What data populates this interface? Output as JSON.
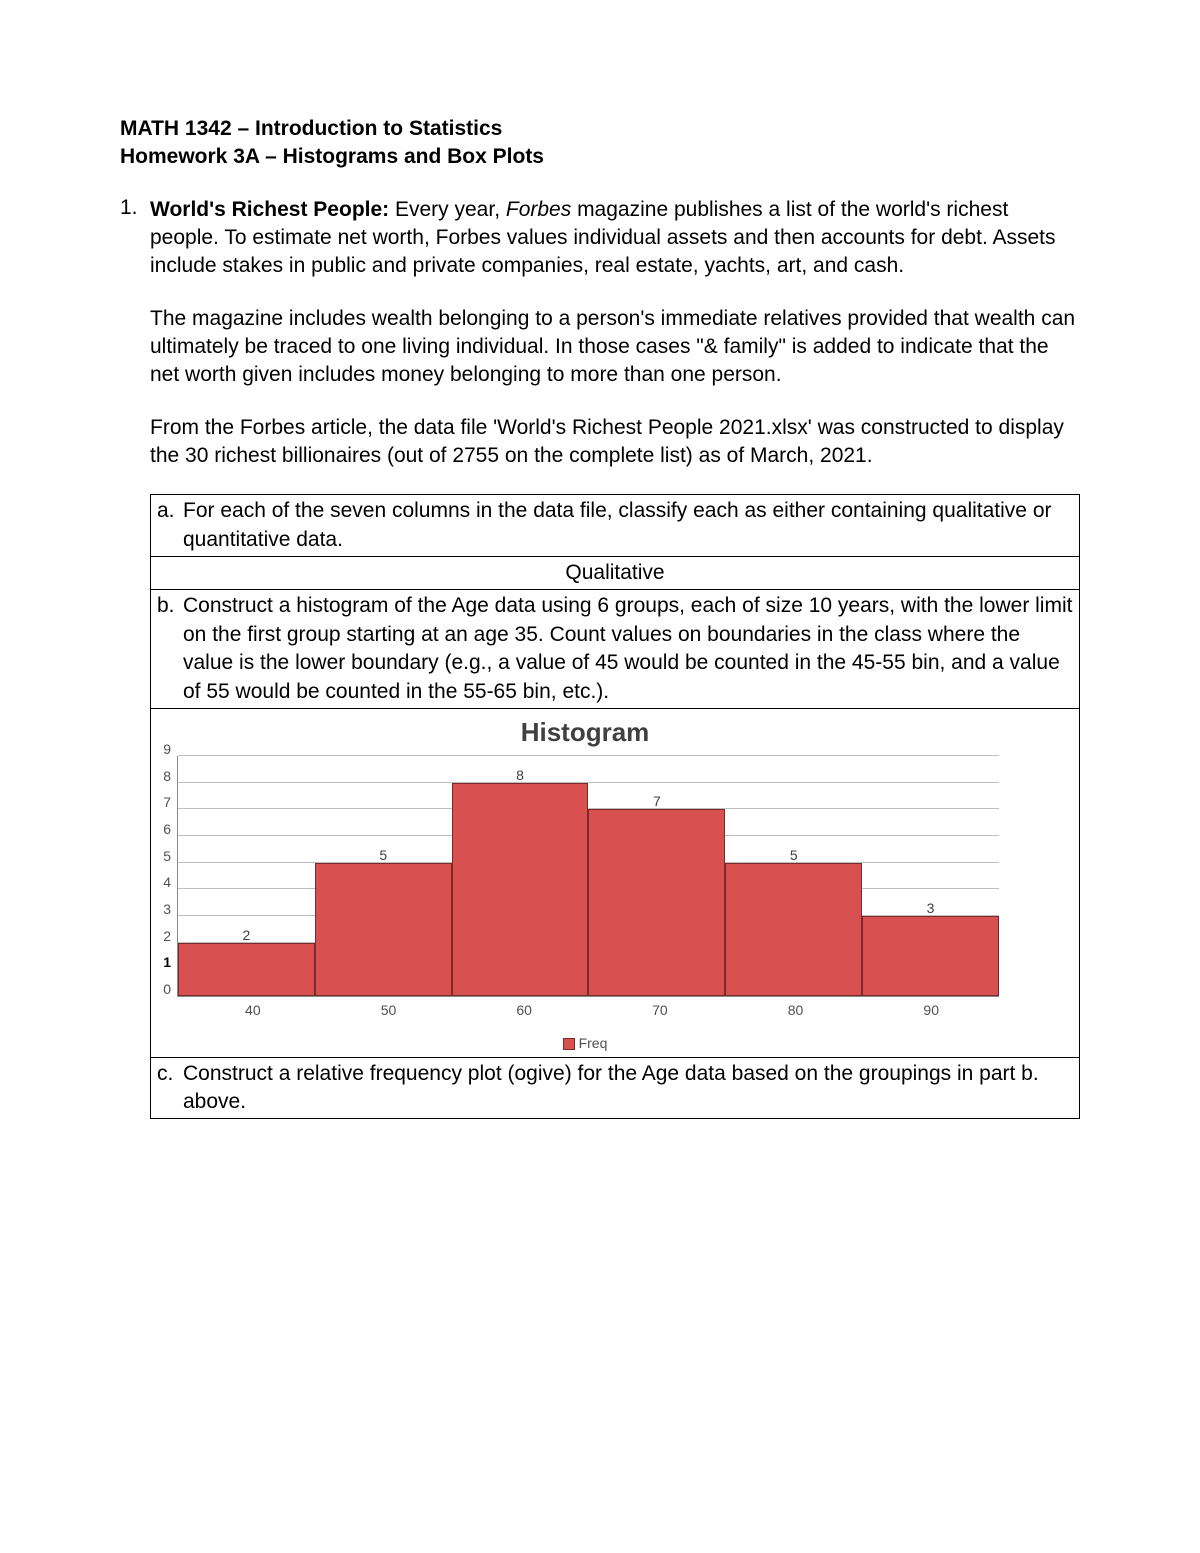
{
  "header": {
    "line1": "MATH 1342 – Introduction to Statistics",
    "line2": "Homework 3A – Histograms and Box Plots"
  },
  "q1": {
    "number": "1.",
    "title": "World's Richest People:",
    "para1_rest": "  Every year, ",
    "para1_italic": "Forbes",
    "para1_after": " magazine publishes a list of the world's richest people.  To estimate net worth, Forbes values individual assets and then accounts for debt.  Assets include stakes in public and private companies, real estate, yachts, art, and cash.",
    "para2": "The magazine includes wealth belonging to a person's immediate relatives provided that wealth can ultimately be traced to one living individual.  In those cases \"& family\" is added to indicate that the net worth given includes money belonging to more than one person.",
    "para3": "From the Forbes article, the data file 'World's Richest People 2021.xlsx' was constructed to display the 30 richest billionaires (out of 2755 on the complete list) as of March, 2021."
  },
  "parts": {
    "a_letter": "a.",
    "a_text": "For each of the seven columns in the data file, classify each as either containing qualitative or quantitative data.",
    "a_answer": "Qualitative",
    "b_letter": "b.",
    "b_text": "Construct a histogram of the Age data using 6 groups, each of size 10 years, with the lower limit on the first group starting at an age 35.  Count values on boundaries in the class where the value is the lower boundary (e.g., a value of 45 would be counted in the 45-55 bin, and a value of 55 would be counted in the 55-65 bin, etc.).",
    "c_letter": "c.",
    "c_text": "Construct a relative frequency plot (ogive) for the Age data based on the groupings in part b. above."
  },
  "histogram": {
    "type": "bar",
    "title": "Histogram",
    "legend_label": "Freq",
    "y_ticks": [
      "9",
      "8",
      "7",
      "6",
      "5",
      "4",
      "3",
      "2",
      "1",
      "0"
    ],
    "y_max": 9,
    "x_labels": [
      "40",
      "50",
      "60",
      "70",
      "80",
      "90"
    ],
    "values": [
      2,
      5,
      8,
      7,
      5,
      3
    ],
    "bar_color": "#d85050",
    "bar_border": "#7a2a2a",
    "grid_color": "#bfbfbf",
    "axis_color": "#888888",
    "text_color": "#505050",
    "title_color": "#404040",
    "title_fontsize": 26,
    "tick_fontsize": 14,
    "background_color": "#ffffff"
  }
}
